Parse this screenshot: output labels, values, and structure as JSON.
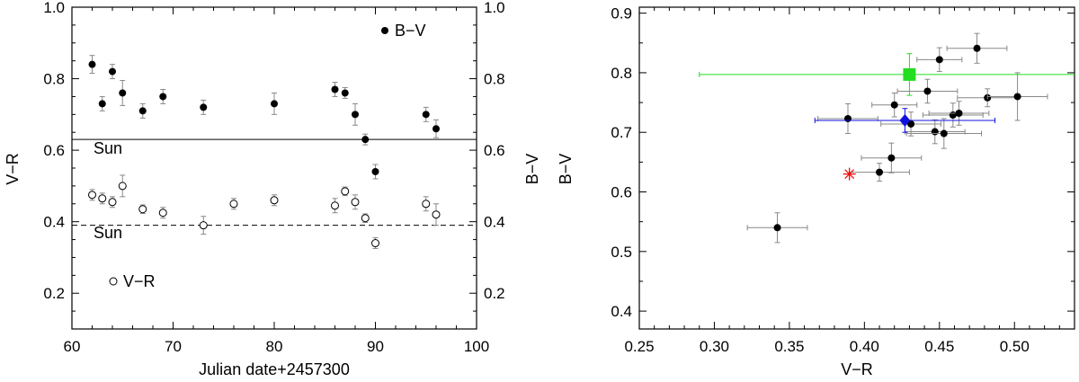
{
  "chart_data": [
    {
      "type": "scatter",
      "xlabel": "Julian date+2457300",
      "ylabel_left": "V−R",
      "ylabel_right": "B−V",
      "xlim": [
        60,
        100
      ],
      "ylim": [
        0.1,
        1.0
      ],
      "xticks": [
        "60",
        "70",
        "80",
        "90",
        "100"
      ],
      "yticks": [
        "0.2",
        "0.4",
        "0.6",
        "0.8",
        "1.0"
      ],
      "series": [
        {
          "name": "B−V",
          "marker": "filled-circle",
          "x": [
            62,
            63,
            64,
            65,
            67,
            69,
            73,
            80,
            86,
            87,
            88,
            89,
            90,
            95,
            96
          ],
          "y": [
            0.84,
            0.73,
            0.82,
            0.76,
            0.71,
            0.75,
            0.72,
            0.73,
            0.77,
            0.76,
            0.7,
            0.63,
            0.54,
            0.7,
            0.66
          ],
          "err": [
            0.025,
            0.02,
            0.02,
            0.035,
            0.02,
            0.02,
            0.02,
            0.03,
            0.02,
            0.015,
            0.03,
            0.015,
            0.02,
            0.02,
            0.025
          ]
        },
        {
          "name": "V−R",
          "marker": "open-circle",
          "x": [
            62,
            63,
            64,
            65,
            67,
            69,
            73,
            76,
            80,
            86,
            87,
            88,
            89,
            90,
            95,
            96
          ],
          "y": [
            0.475,
            0.465,
            0.455,
            0.5,
            0.435,
            0.425,
            0.39,
            0.45,
            0.46,
            0.445,
            0.485,
            0.455,
            0.41,
            0.34,
            0.45,
            0.42
          ],
          "err": [
            0.015,
            0.015,
            0.015,
            0.03,
            0.012,
            0.015,
            0.025,
            0.015,
            0.015,
            0.02,
            0.012,
            0.02,
            0.012,
            0.015,
            0.02,
            0.03
          ]
        }
      ],
      "reference_lines": [
        {
          "label": "Sun",
          "y": 0.63,
          "style": "solid"
        },
        {
          "label": "Sun",
          "y": 0.39,
          "style": "dashed"
        }
      ],
      "legend": [
        {
          "label": "B−V",
          "marker": "filled-circle"
        },
        {
          "label": "V−R",
          "marker": "open-circle"
        }
      ]
    },
    {
      "type": "scatter",
      "xlabel": "V−R",
      "ylabel": "B−V",
      "xlim": [
        0.25,
        0.54
      ],
      "ylim": [
        0.37,
        0.91
      ],
      "xticks": [
        "0.25",
        "0.30",
        "0.35",
        "0.40",
        "0.45",
        "0.50"
      ],
      "yticks": [
        "0.4",
        "0.5",
        "0.6",
        "0.7",
        "0.8",
        "0.9"
      ],
      "points": [
        {
          "x": 0.342,
          "y": 0.54,
          "xerr": 0.02,
          "yerr": 0.025
        },
        {
          "x": 0.389,
          "y": 0.723,
          "xerr": 0.02,
          "yerr": 0.025
        },
        {
          "x": 0.41,
          "y": 0.633,
          "xerr": 0.02,
          "yerr": 0.015
        },
        {
          "x": 0.418,
          "y": 0.657,
          "xerr": 0.02,
          "yerr": 0.025
        },
        {
          "x": 0.42,
          "y": 0.746,
          "xerr": 0.015,
          "yerr": 0.02
        },
        {
          "x": 0.431,
          "y": 0.714,
          "xerr": 0.02,
          "yerr": 0.02
        },
        {
          "x": 0.442,
          "y": 0.769,
          "xerr": 0.02,
          "yerr": 0.02
        },
        {
          "x": 0.447,
          "y": 0.701,
          "xerr": 0.02,
          "yerr": 0.02
        },
        {
          "x": 0.45,
          "y": 0.822,
          "xerr": 0.015,
          "yerr": 0.02
        },
        {
          "x": 0.453,
          "y": 0.698,
          "xerr": 0.025,
          "yerr": 0.025
        },
        {
          "x": 0.459,
          "y": 0.729,
          "xerr": 0.02,
          "yerr": 0.02
        },
        {
          "x": 0.463,
          "y": 0.732,
          "xerr": 0.02,
          "yerr": 0.02
        },
        {
          "x": 0.475,
          "y": 0.841,
          "xerr": 0.02,
          "yerr": 0.025
        },
        {
          "x": 0.482,
          "y": 0.758,
          "xerr": 0.02,
          "yerr": 0.015
        },
        {
          "x": 0.502,
          "y": 0.76,
          "xerr": 0.02,
          "yerr": 0.04
        }
      ],
      "special_points": [
        {
          "marker": "square",
          "color": "#22dd22",
          "x": 0.43,
          "y": 0.797,
          "xerr_minus": 0.14,
          "xerr_plus": 0.12,
          "yerr": 0.035
        },
        {
          "marker": "diamond",
          "color": "#1111dd",
          "x": 0.427,
          "y": 0.72,
          "xerr": 0.06,
          "yerr": 0.02
        },
        {
          "marker": "asterisk",
          "color": "#ee1111",
          "x": 0.39,
          "y": 0.63
        }
      ]
    }
  ]
}
